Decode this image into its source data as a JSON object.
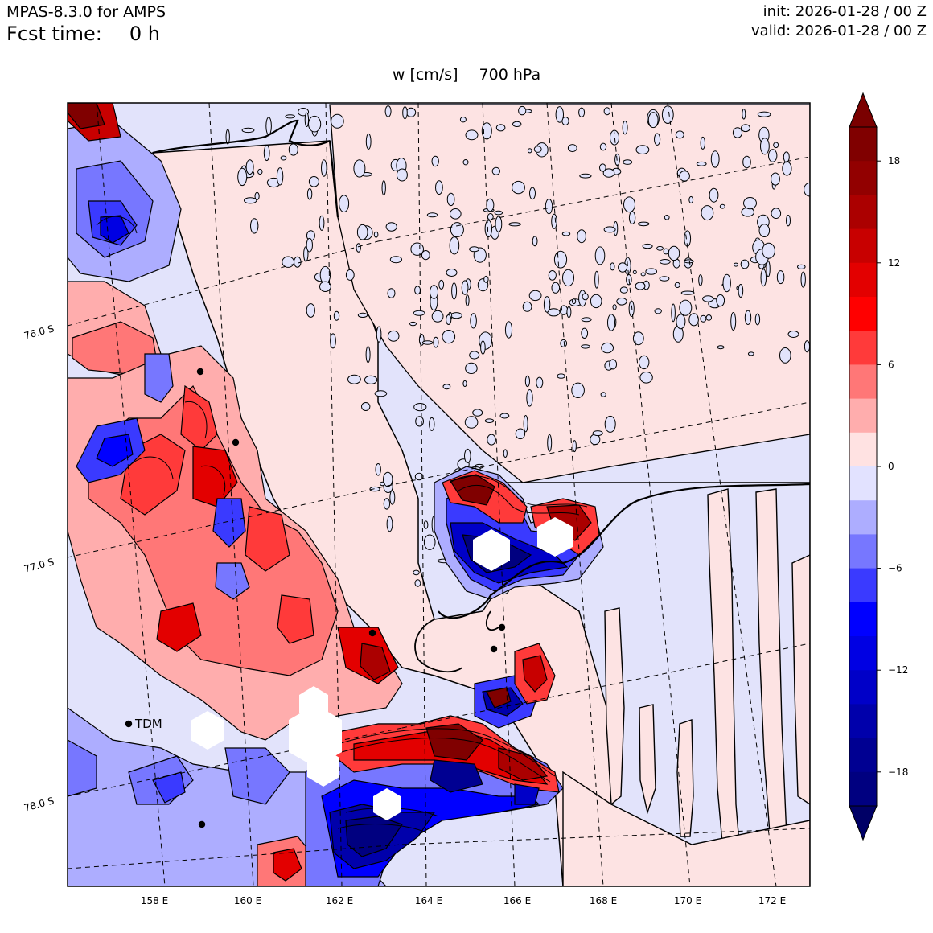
{
  "header": {
    "model": "MPAS-8.3.0 for AMPS",
    "fcst_label": "Fcst time:",
    "fcst_value": "0 h",
    "init": "init: 2026-01-28 / 00 Z",
    "valid": "valid: 2026-01-28 / 00 Z"
  },
  "field": {
    "name": "w [cm/s]",
    "level": "700 hPa"
  },
  "map": {
    "lon_labels": [
      "158 E",
      "160 E",
      "162 E",
      "164 E",
      "166 E",
      "168 E",
      "170 E",
      "172 E"
    ],
    "lat_labels": [
      "76.0 S",
      "77.0 S",
      "78.0 S"
    ],
    "station_label": "TDM"
  },
  "colorbar": {
    "tick_labels": [
      "18",
      "12",
      "6",
      "0",
      "−6",
      "−12",
      "−18"
    ],
    "colors": [
      "#800000",
      "#920000",
      "#ab0000",
      "#c80000",
      "#e30000",
      "#ff0000",
      "#ff3a3a",
      "#ff7777",
      "#ffadad",
      "#ffe2e2",
      "#e2e2ff",
      "#adadff",
      "#7777ff",
      "#3a3aff",
      "#0000ff",
      "#0000e3",
      "#0000c8",
      "#0000ab",
      "#000092",
      "#000080"
    ],
    "extend_colors": {
      "max": "#7a0000",
      "min": "#000066"
    }
  },
  "palette": {
    "ocean_pos": "#fde3e3",
    "ocean_neg": "#e2e3fb"
  }
}
